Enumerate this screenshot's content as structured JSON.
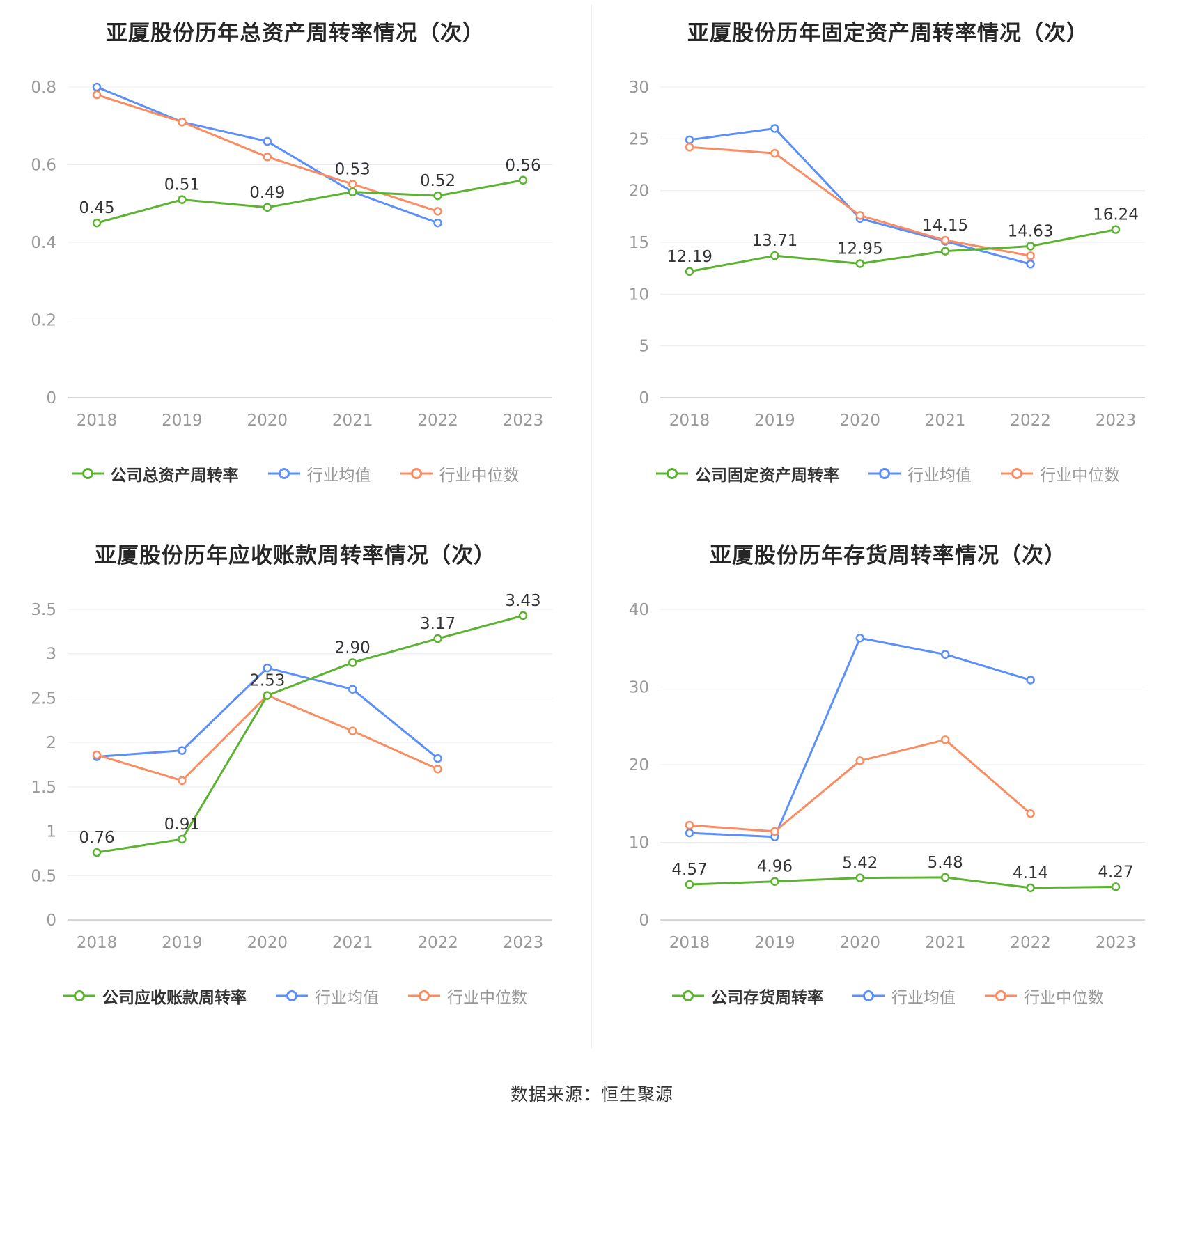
{
  "palette": {
    "company": "#5BB331",
    "industry_mean": "#5B8FF9",
    "industry_median": "#FA8C62",
    "grid": "#E9ECF5",
    "axis": "#CCCCCC",
    "title": "#262626",
    "tick": "#999999",
    "label": "#333333"
  },
  "footer": {
    "source": "数据来源：恒生聚源"
  },
  "chart_data": [
    {
      "type": "line",
      "title": "亚厦股份历年总资产周转率情况（次）",
      "categories": [
        "2018",
        "2019",
        "2020",
        "2021",
        "2022",
        "2023"
      ],
      "ylim": [
        0,
        0.8
      ],
      "yticks": [
        "0",
        "0.2",
        "0.4",
        "0.6",
        "0.8"
      ],
      "grid": true,
      "legend_position": "bottom",
      "series": [
        {
          "name": "公司总资产周转率",
          "color": "company",
          "values": [
            0.45,
            0.51,
            0.49,
            0.53,
            0.52,
            0.56
          ],
          "labels": [
            "0.45",
            "0.51",
            "0.49",
            "0.53",
            "0.52",
            "0.56"
          ]
        },
        {
          "name": "行业均值",
          "color": "industry_mean",
          "values": [
            0.8,
            0.71,
            0.66,
            0.53,
            0.45,
            null
          ]
        },
        {
          "name": "行业中位数",
          "color": "industry_median",
          "values": [
            0.78,
            0.71,
            0.62,
            0.55,
            0.48,
            null
          ]
        }
      ]
    },
    {
      "type": "line",
      "title": "亚厦股份历年固定资产周转率情况（次）",
      "categories": [
        "2018",
        "2019",
        "2020",
        "2021",
        "2022",
        "2023"
      ],
      "ylim": [
        0,
        30
      ],
      "yticks": [
        "0",
        "5",
        "10",
        "15",
        "20",
        "25",
        "30"
      ],
      "grid": true,
      "legend_position": "bottom",
      "series": [
        {
          "name": "公司固定资产周转率",
          "color": "company",
          "values": [
            12.19,
            13.71,
            12.95,
            14.15,
            14.63,
            16.24
          ],
          "labels": [
            "12.19",
            "13.71",
            "12.95",
            "14.15",
            "14.63",
            "16.24"
          ]
        },
        {
          "name": "行业均值",
          "color": "industry_mean",
          "values": [
            24.9,
            26.0,
            17.3,
            15.1,
            12.9,
            null
          ]
        },
        {
          "name": "行业中位数",
          "color": "industry_median",
          "values": [
            24.2,
            23.6,
            17.6,
            15.2,
            13.7,
            null
          ]
        }
      ]
    },
    {
      "type": "line",
      "title": "亚厦股份历年应收账款周转率情况（次）",
      "categories": [
        "2018",
        "2019",
        "2020",
        "2021",
        "2022",
        "2023"
      ],
      "ylim": [
        0,
        3.5
      ],
      "yticks": [
        "0",
        "0.5",
        "1",
        "1.5",
        "2",
        "2.5",
        "3",
        "3.5"
      ],
      "grid": true,
      "legend_position": "bottom",
      "series": [
        {
          "name": "公司应收账款周转率",
          "color": "company",
          "values": [
            0.76,
            0.91,
            2.53,
            2.9,
            3.17,
            3.43
          ],
          "labels": [
            "0.76",
            "0.91",
            "2.53",
            "2.90",
            "3.17",
            "3.43"
          ]
        },
        {
          "name": "行业均值",
          "color": "industry_mean",
          "values": [
            1.84,
            1.91,
            2.84,
            2.6,
            1.82,
            null
          ]
        },
        {
          "name": "行业中位数",
          "color": "industry_median",
          "values": [
            1.86,
            1.57,
            2.53,
            2.13,
            1.7,
            null
          ]
        }
      ]
    },
    {
      "type": "line",
      "title": "亚厦股份历年存货周转率情况（次）",
      "categories": [
        "2018",
        "2019",
        "2020",
        "2021",
        "2022",
        "2023"
      ],
      "ylim": [
        0,
        40
      ],
      "yticks": [
        "0",
        "10",
        "20",
        "30",
        "40"
      ],
      "grid": true,
      "legend_position": "bottom",
      "series": [
        {
          "name": "公司存货周转率",
          "color": "company",
          "values": [
            4.57,
            4.96,
            5.42,
            5.48,
            4.14,
            4.27
          ],
          "labels": [
            "4.57",
            "4.96",
            "5.42",
            "5.48",
            "4.14",
            "4.27"
          ]
        },
        {
          "name": "行业均值",
          "color": "industry_mean",
          "values": [
            11.2,
            10.7,
            36.3,
            34.2,
            30.9,
            null
          ]
        },
        {
          "name": "行业中位数",
          "color": "industry_median",
          "values": [
            12.2,
            11.4,
            20.5,
            23.2,
            13.7,
            null
          ]
        }
      ]
    }
  ]
}
